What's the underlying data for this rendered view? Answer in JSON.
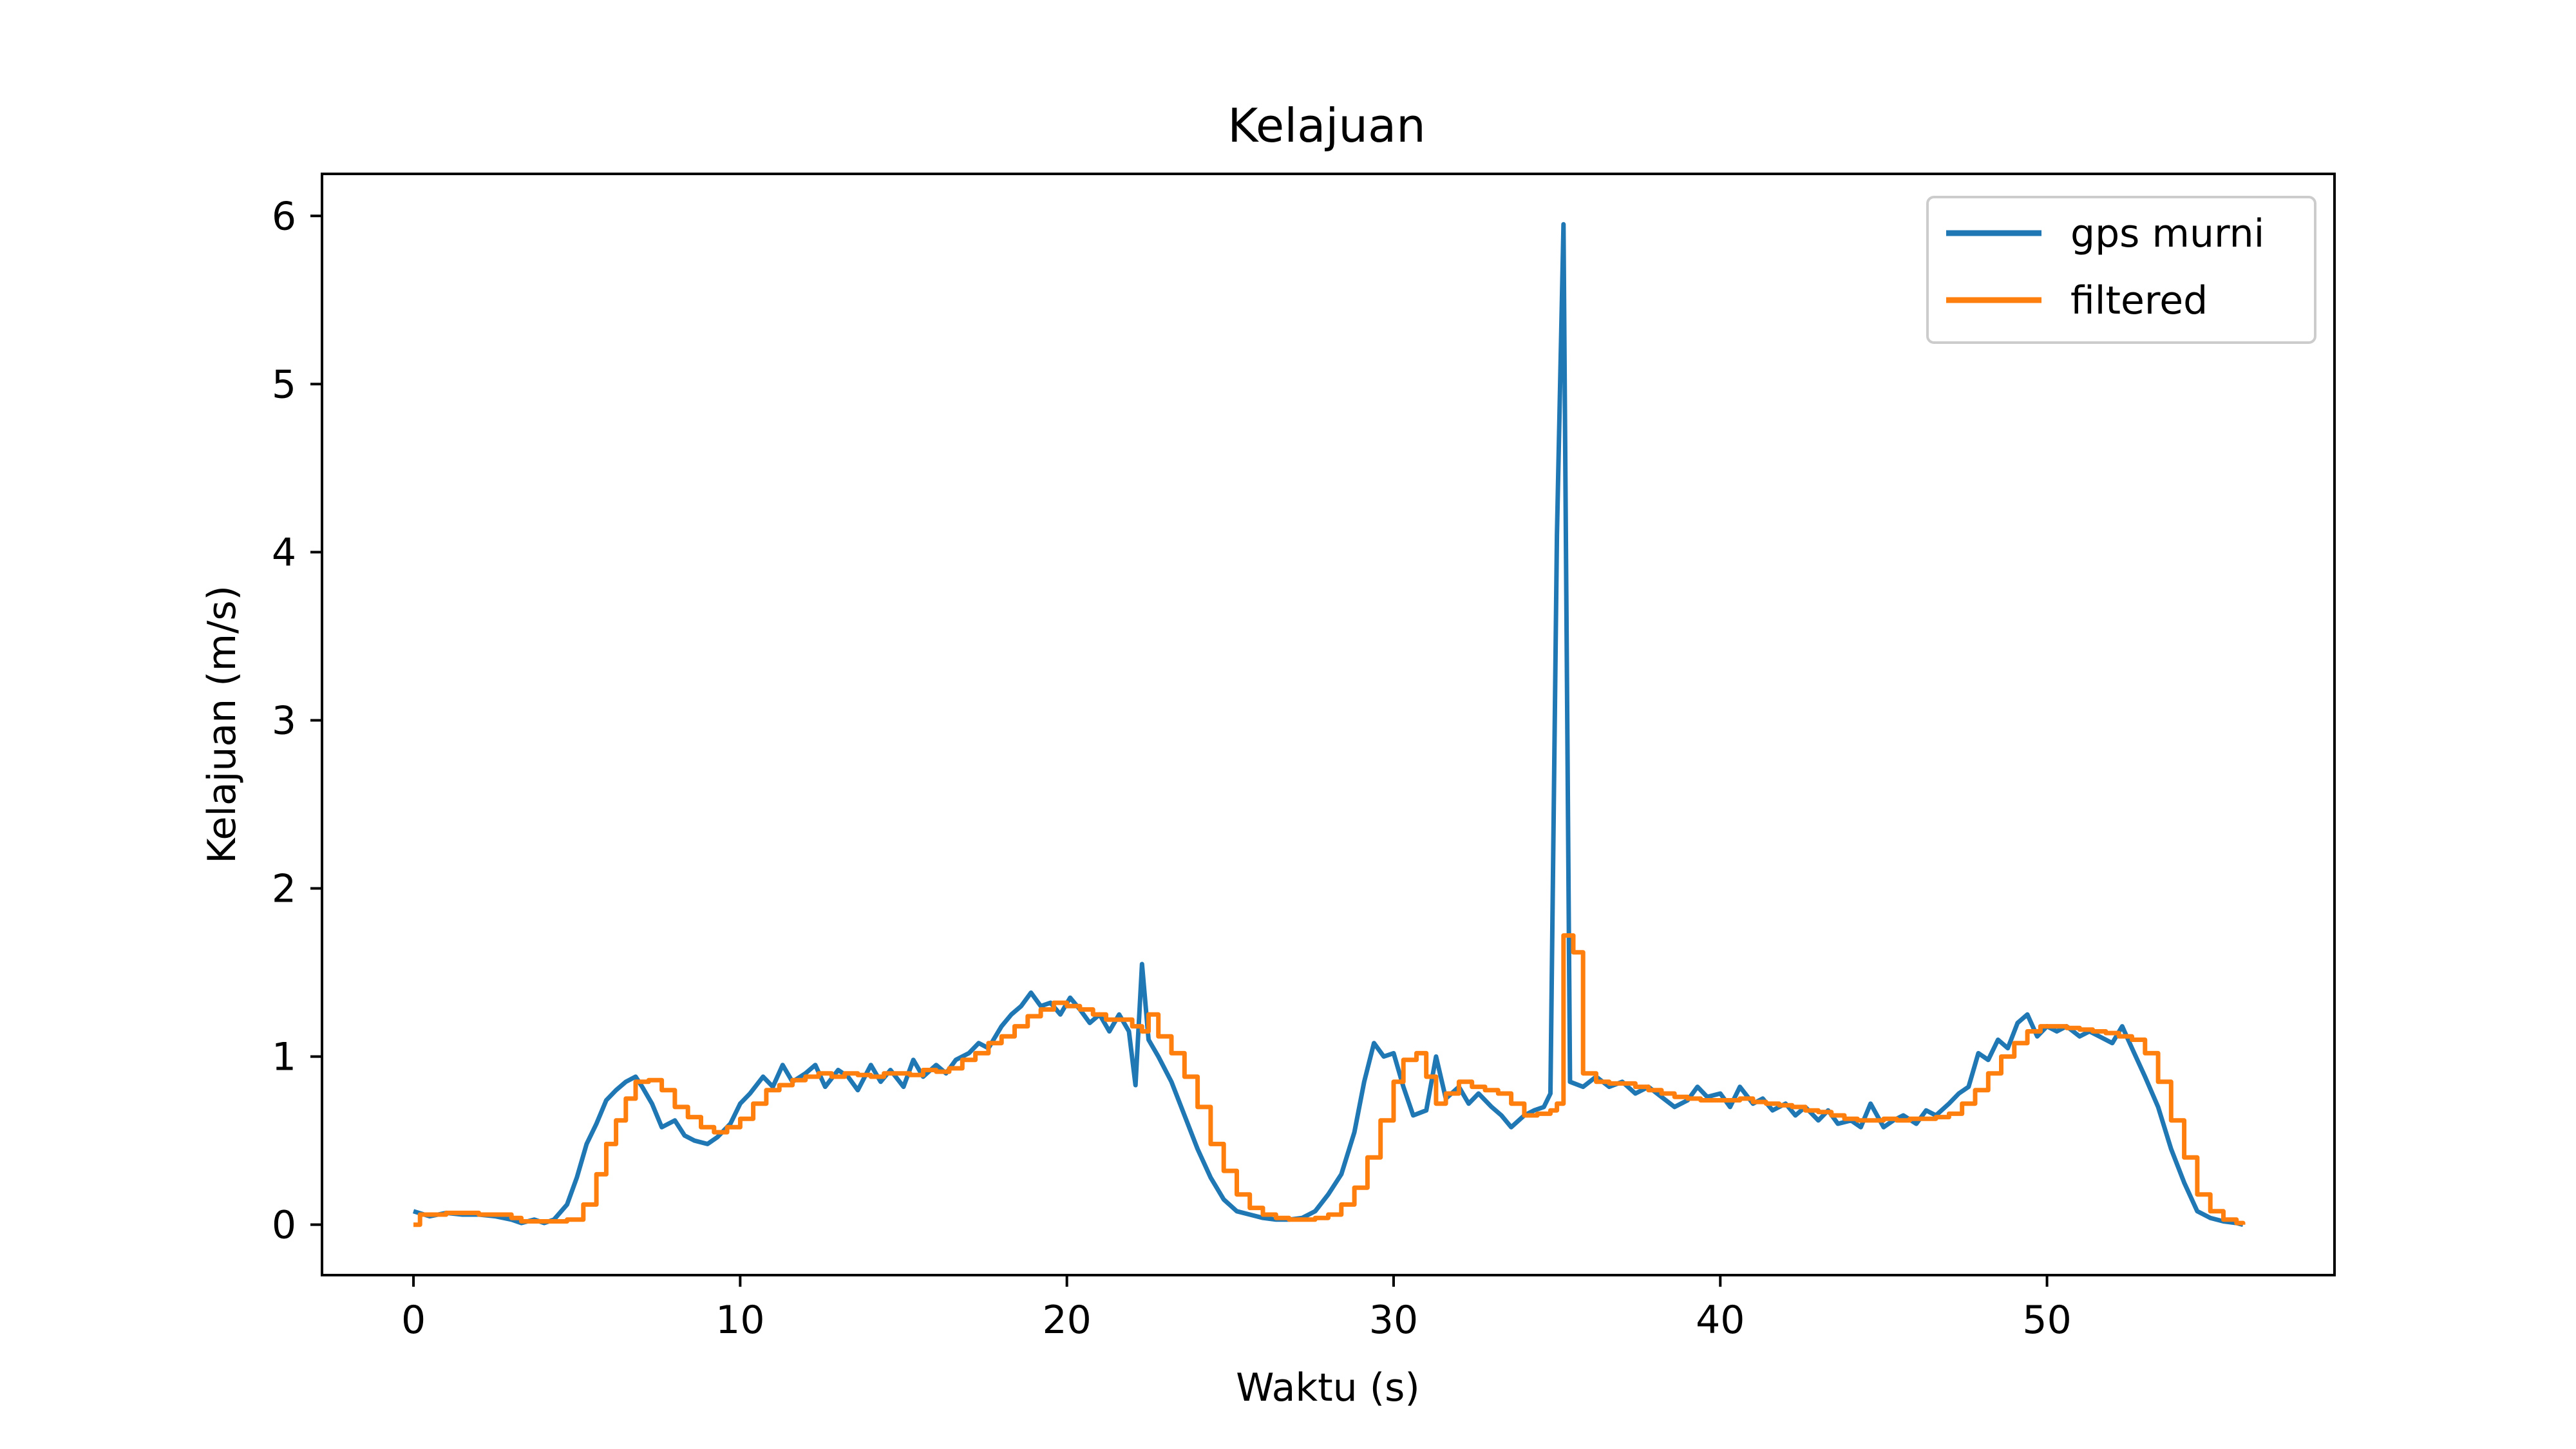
{
  "chart_data": {
    "type": "line",
    "title": "Kelajuan",
    "xlabel": "Waktu (s)",
    "ylabel": "Kelajuan (m/s)",
    "xlim": [
      -2.8,
      58.8
    ],
    "ylim": [
      -0.3,
      6.25
    ],
    "xticks": [
      0,
      10,
      20,
      30,
      40,
      50
    ],
    "yticks": [
      0,
      1,
      2,
      3,
      4,
      5,
      6
    ],
    "grid": false,
    "legend_position": "top-right",
    "series": [
      {
        "name": "gps murni",
        "color": "#1f77b4",
        "step": false,
        "points": [
          [
            0,
            0.08
          ],
          [
            0.5,
            0.05
          ],
          [
            1,
            0.07
          ],
          [
            1.5,
            0.06
          ],
          [
            2,
            0.06
          ],
          [
            2.5,
            0.05
          ],
          [
            3,
            0.03
          ],
          [
            3.3,
            0.01
          ],
          [
            3.7,
            0.03
          ],
          [
            4,
            0.01
          ],
          [
            4.3,
            0.03
          ],
          [
            4.7,
            0.12
          ],
          [
            5,
            0.28
          ],
          [
            5.3,
            0.48
          ],
          [
            5.6,
            0.6
          ],
          [
            5.9,
            0.74
          ],
          [
            6.2,
            0.8
          ],
          [
            6.5,
            0.85
          ],
          [
            6.8,
            0.88
          ],
          [
            7,
            0.82
          ],
          [
            7.3,
            0.72
          ],
          [
            7.6,
            0.58
          ],
          [
            8,
            0.62
          ],
          [
            8.3,
            0.53
          ],
          [
            8.6,
            0.5
          ],
          [
            9,
            0.48
          ],
          [
            9.3,
            0.52
          ],
          [
            9.7,
            0.6
          ],
          [
            10,
            0.72
          ],
          [
            10.3,
            0.78
          ],
          [
            10.7,
            0.88
          ],
          [
            11,
            0.82
          ],
          [
            11.3,
            0.95
          ],
          [
            11.6,
            0.85
          ],
          [
            12,
            0.9
          ],
          [
            12.3,
            0.95
          ],
          [
            12.6,
            0.82
          ],
          [
            13,
            0.92
          ],
          [
            13.3,
            0.88
          ],
          [
            13.6,
            0.8
          ],
          [
            14,
            0.95
          ],
          [
            14.3,
            0.85
          ],
          [
            14.6,
            0.92
          ],
          [
            15,
            0.82
          ],
          [
            15.3,
            0.98
          ],
          [
            15.6,
            0.88
          ],
          [
            16,
            0.95
          ],
          [
            16.3,
            0.9
          ],
          [
            16.6,
            0.98
          ],
          [
            17,
            1.02
          ],
          [
            17.3,
            1.08
          ],
          [
            17.6,
            1.05
          ],
          [
            18,
            1.18
          ],
          [
            18.3,
            1.25
          ],
          [
            18.6,
            1.3
          ],
          [
            18.9,
            1.38
          ],
          [
            19.2,
            1.3
          ],
          [
            19.5,
            1.32
          ],
          [
            19.8,
            1.25
          ],
          [
            20.1,
            1.35
          ],
          [
            20.4,
            1.28
          ],
          [
            20.7,
            1.2
          ],
          [
            21,
            1.25
          ],
          [
            21.3,
            1.15
          ],
          [
            21.6,
            1.25
          ],
          [
            21.9,
            1.15
          ],
          [
            22.1,
            0.83
          ],
          [
            22.3,
            1.55
          ],
          [
            22.5,
            1.1
          ],
          [
            22.8,
            1.0
          ],
          [
            23.2,
            0.85
          ],
          [
            23.6,
            0.65
          ],
          [
            24,
            0.45
          ],
          [
            24.4,
            0.28
          ],
          [
            24.8,
            0.15
          ],
          [
            25.2,
            0.08
          ],
          [
            25.6,
            0.06
          ],
          [
            26,
            0.04
          ],
          [
            26.4,
            0.03
          ],
          [
            26.8,
            0.03
          ],
          [
            27.2,
            0.04
          ],
          [
            27.6,
            0.08
          ],
          [
            28,
            0.18
          ],
          [
            28.4,
            0.3
          ],
          [
            28.8,
            0.55
          ],
          [
            29.1,
            0.85
          ],
          [
            29.4,
            1.08
          ],
          [
            29.7,
            1.0
          ],
          [
            30,
            1.02
          ],
          [
            30.3,
            0.82
          ],
          [
            30.6,
            0.65
          ],
          [
            31,
            0.68
          ],
          [
            31.3,
            1.0
          ],
          [
            31.6,
            0.75
          ],
          [
            32,
            0.82
          ],
          [
            32.3,
            0.72
          ],
          [
            32.6,
            0.78
          ],
          [
            33,
            0.7
          ],
          [
            33.3,
            0.65
          ],
          [
            33.6,
            0.58
          ],
          [
            34,
            0.65
          ],
          [
            34.3,
            0.68
          ],
          [
            34.6,
            0.7
          ],
          [
            34.8,
            0.78
          ],
          [
            35,
            4.1
          ],
          [
            35.2,
            5.95
          ],
          [
            35.4,
            0.85
          ],
          [
            35.8,
            0.82
          ],
          [
            36.2,
            0.88
          ],
          [
            36.6,
            0.82
          ],
          [
            37,
            0.85
          ],
          [
            37.4,
            0.78
          ],
          [
            37.8,
            0.82
          ],
          [
            38.2,
            0.76
          ],
          [
            38.6,
            0.7
          ],
          [
            39,
            0.74
          ],
          [
            39.3,
            0.82
          ],
          [
            39.6,
            0.76
          ],
          [
            40,
            0.78
          ],
          [
            40.3,
            0.7
          ],
          [
            40.6,
            0.82
          ],
          [
            41,
            0.72
          ],
          [
            41.3,
            0.75
          ],
          [
            41.6,
            0.68
          ],
          [
            42,
            0.72
          ],
          [
            42.3,
            0.65
          ],
          [
            42.6,
            0.7
          ],
          [
            43,
            0.62
          ],
          [
            43.3,
            0.68
          ],
          [
            43.6,
            0.6
          ],
          [
            44,
            0.62
          ],
          [
            44.3,
            0.58
          ],
          [
            44.6,
            0.72
          ],
          [
            45,
            0.58
          ],
          [
            45.3,
            0.62
          ],
          [
            45.6,
            0.65
          ],
          [
            46,
            0.6
          ],
          [
            46.3,
            0.68
          ],
          [
            46.6,
            0.65
          ],
          [
            47,
            0.72
          ],
          [
            47.3,
            0.78
          ],
          [
            47.6,
            0.82
          ],
          [
            47.9,
            1.02
          ],
          [
            48.2,
            0.98
          ],
          [
            48.5,
            1.1
          ],
          [
            48.8,
            1.05
          ],
          [
            49.1,
            1.2
          ],
          [
            49.4,
            1.25
          ],
          [
            49.7,
            1.12
          ],
          [
            50,
            1.18
          ],
          [
            50.3,
            1.15
          ],
          [
            50.6,
            1.18
          ],
          [
            51,
            1.12
          ],
          [
            51.3,
            1.15
          ],
          [
            51.6,
            1.12
          ],
          [
            52,
            1.08
          ],
          [
            52.3,
            1.18
          ],
          [
            52.6,
            1.05
          ],
          [
            53,
            0.88
          ],
          [
            53.4,
            0.7
          ],
          [
            53.8,
            0.45
          ],
          [
            54.2,
            0.25
          ],
          [
            54.6,
            0.08
          ],
          [
            55,
            0.04
          ],
          [
            55.4,
            0.02
          ],
          [
            55.8,
            0.01
          ],
          [
            56,
            0.0
          ]
        ]
      },
      {
        "name": "filtered",
        "color": "#ff7f0e",
        "step": true,
        "points": [
          [
            0,
            0.0
          ],
          [
            0.2,
            0.06
          ],
          [
            1,
            0.07
          ],
          [
            2,
            0.06
          ],
          [
            3,
            0.04
          ],
          [
            3.3,
            0.02
          ],
          [
            4,
            0.02
          ],
          [
            4.3,
            0.02
          ],
          [
            4.7,
            0.03
          ],
          [
            5.2,
            0.12
          ],
          [
            5.6,
            0.3
          ],
          [
            5.9,
            0.48
          ],
          [
            6.2,
            0.62
          ],
          [
            6.5,
            0.75
          ],
          [
            6.8,
            0.85
          ],
          [
            7.2,
            0.86
          ],
          [
            7.6,
            0.8
          ],
          [
            8,
            0.7
          ],
          [
            8.4,
            0.64
          ],
          [
            8.8,
            0.58
          ],
          [
            9.2,
            0.55
          ],
          [
            9.6,
            0.58
          ],
          [
            10,
            0.63
          ],
          [
            10.4,
            0.72
          ],
          [
            10.8,
            0.8
          ],
          [
            11.2,
            0.83
          ],
          [
            11.6,
            0.86
          ],
          [
            12,
            0.88
          ],
          [
            12.4,
            0.9
          ],
          [
            12.8,
            0.88
          ],
          [
            13.2,
            0.9
          ],
          [
            13.6,
            0.89
          ],
          [
            14,
            0.88
          ],
          [
            14.4,
            0.9
          ],
          [
            14.8,
            0.9
          ],
          [
            15.2,
            0.89
          ],
          [
            15.6,
            0.92
          ],
          [
            16,
            0.91
          ],
          [
            16.4,
            0.93
          ],
          [
            16.8,
            0.98
          ],
          [
            17.2,
            1.02
          ],
          [
            17.6,
            1.08
          ],
          [
            18,
            1.12
          ],
          [
            18.4,
            1.18
          ],
          [
            18.8,
            1.24
          ],
          [
            19.2,
            1.28
          ],
          [
            19.6,
            1.32
          ],
          [
            20,
            1.3
          ],
          [
            20.4,
            1.28
          ],
          [
            20.8,
            1.25
          ],
          [
            21.2,
            1.22
          ],
          [
            21.6,
            1.22
          ],
          [
            22,
            1.18
          ],
          [
            22.3,
            1.15
          ],
          [
            22.5,
            1.25
          ],
          [
            22.8,
            1.12
          ],
          [
            23.2,
            1.02
          ],
          [
            23.6,
            0.88
          ],
          [
            24,
            0.7
          ],
          [
            24.4,
            0.48
          ],
          [
            24.8,
            0.32
          ],
          [
            25.2,
            0.18
          ],
          [
            25.6,
            0.1
          ],
          [
            26,
            0.06
          ],
          [
            26.4,
            0.04
          ],
          [
            26.8,
            0.03
          ],
          [
            27.2,
            0.03
          ],
          [
            27.6,
            0.04
          ],
          [
            28,
            0.06
          ],
          [
            28.4,
            0.12
          ],
          [
            28.8,
            0.22
          ],
          [
            29.2,
            0.4
          ],
          [
            29.6,
            0.62
          ],
          [
            30,
            0.85
          ],
          [
            30.3,
            0.98
          ],
          [
            30.7,
            1.02
          ],
          [
            31,
            0.88
          ],
          [
            31.3,
            0.72
          ],
          [
            31.6,
            0.78
          ],
          [
            32,
            0.85
          ],
          [
            32.4,
            0.82
          ],
          [
            32.8,
            0.8
          ],
          [
            33.2,
            0.78
          ],
          [
            33.6,
            0.72
          ],
          [
            34,
            0.65
          ],
          [
            34.4,
            0.66
          ],
          [
            34.8,
            0.68
          ],
          [
            35,
            0.72
          ],
          [
            35.2,
            1.72
          ],
          [
            35.5,
            1.62
          ],
          [
            35.8,
            0.9
          ],
          [
            36.2,
            0.85
          ],
          [
            36.6,
            0.84
          ],
          [
            37,
            0.84
          ],
          [
            37.4,
            0.82
          ],
          [
            37.8,
            0.8
          ],
          [
            38.2,
            0.78
          ],
          [
            38.6,
            0.76
          ],
          [
            39,
            0.75
          ],
          [
            39.4,
            0.74
          ],
          [
            39.8,
            0.74
          ],
          [
            40.2,
            0.74
          ],
          [
            40.6,
            0.75
          ],
          [
            41,
            0.73
          ],
          [
            41.4,
            0.72
          ],
          [
            41.8,
            0.71
          ],
          [
            42.2,
            0.7
          ],
          [
            42.6,
            0.68
          ],
          [
            43,
            0.67
          ],
          [
            43.4,
            0.65
          ],
          [
            43.8,
            0.63
          ],
          [
            44.2,
            0.62
          ],
          [
            44.6,
            0.62
          ],
          [
            45,
            0.63
          ],
          [
            45.4,
            0.62
          ],
          [
            45.8,
            0.63
          ],
          [
            46.2,
            0.63
          ],
          [
            46.6,
            0.64
          ],
          [
            47,
            0.66
          ],
          [
            47.4,
            0.72
          ],
          [
            47.8,
            0.8
          ],
          [
            48.2,
            0.9
          ],
          [
            48.6,
            1.0
          ],
          [
            49,
            1.08
          ],
          [
            49.4,
            1.15
          ],
          [
            49.8,
            1.18
          ],
          [
            50.2,
            1.18
          ],
          [
            50.6,
            1.17
          ],
          [
            51,
            1.16
          ],
          [
            51.4,
            1.15
          ],
          [
            51.8,
            1.14
          ],
          [
            52.2,
            1.12
          ],
          [
            52.6,
            1.1
          ],
          [
            53,
            1.02
          ],
          [
            53.4,
            0.85
          ],
          [
            53.8,
            0.62
          ],
          [
            54.2,
            0.4
          ],
          [
            54.6,
            0.18
          ],
          [
            55,
            0.08
          ],
          [
            55.4,
            0.03
          ],
          [
            55.8,
            0.01
          ],
          [
            56,
            0.0
          ]
        ]
      }
    ]
  }
}
